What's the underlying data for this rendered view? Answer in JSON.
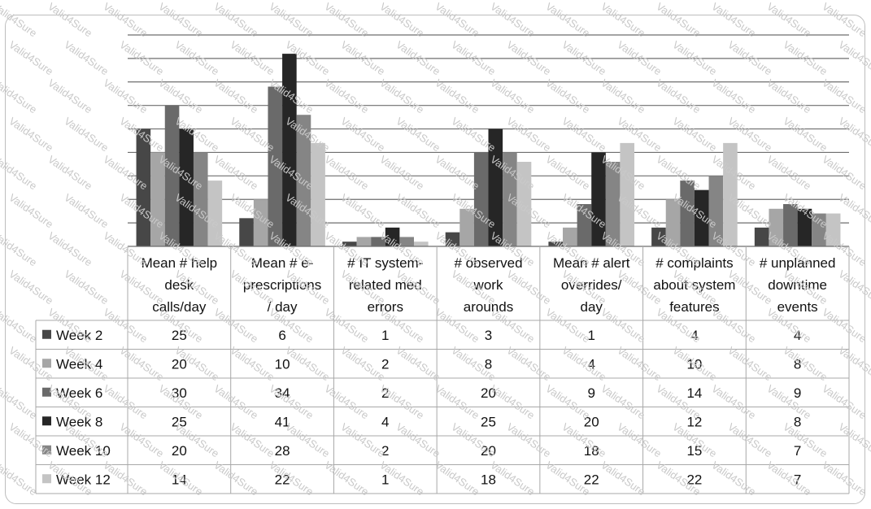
{
  "chart_data": {
    "type": "bar",
    "categories": [
      "Mean # help desk calls/day",
      "Mean # e-prescriptions / day",
      "# IT system-related med errors",
      "# observed work arounds",
      "Mean # alert overrides/ day",
      "# complaints about system features",
      "# unplanned downtime events"
    ],
    "category_lines": [
      [
        "Mean #  help",
        "desk",
        "calls/day"
      ],
      [
        "Mean # e-",
        "prescriptions",
        "/ day"
      ],
      [
        "# IT system-",
        "related med",
        "errors"
      ],
      [
        "# observed",
        "work",
        "arounds"
      ],
      [
        "Mean # alert",
        "overrides/",
        "day"
      ],
      [
        "# complaints",
        "about system",
        "features"
      ],
      [
        "# unplanned",
        "downtime",
        "events"
      ]
    ],
    "series": [
      {
        "name": "Week 2",
        "color": "#474747",
        "values": [
          25,
          6,
          1,
          3,
          1,
          4,
          4
        ]
      },
      {
        "name": "Week 4",
        "color": "#a6a6a6",
        "values": [
          20,
          10,
          2,
          8,
          4,
          10,
          8
        ]
      },
      {
        "name": "Week 6",
        "color": "#6a6a6a",
        "values": [
          30,
          34,
          2,
          20,
          9,
          14,
          9
        ]
      },
      {
        "name": "Week 8",
        "color": "#262626",
        "values": [
          25,
          41,
          4,
          25,
          20,
          12,
          8
        ]
      },
      {
        "name": "Week 10",
        "color": "#858585",
        "values": [
          20,
          28,
          2,
          20,
          18,
          15,
          7
        ]
      },
      {
        "name": "Week 12",
        "color": "#c4c4c4",
        "values": [
          14,
          22,
          1,
          18,
          22,
          22,
          7
        ]
      }
    ],
    "ylim": [
      0,
      45
    ],
    "y_grid_step": 5,
    "grid": true,
    "legend": "data-table",
    "watermark": "Valid4Sure"
  }
}
